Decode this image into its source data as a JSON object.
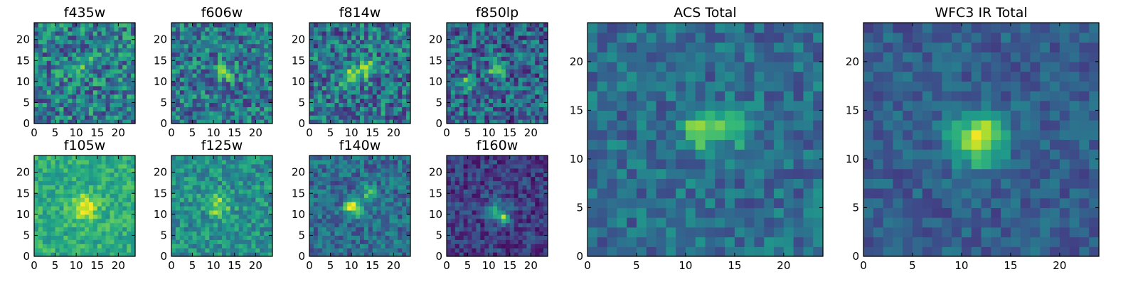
{
  "chart_data": [
    {
      "type": "heatmap",
      "title": "f435w",
      "grid": [
        24,
        24
      ],
      "xlim": [
        0,
        24
      ],
      "ylim": [
        0,
        24
      ],
      "xticks": [
        0,
        5,
        10,
        15,
        20
      ],
      "yticks": [
        0,
        5,
        10,
        15,
        20
      ],
      "colormap": "viridis",
      "seed": 11,
      "base": 0.42,
      "noise": 0.28,
      "peaks": [
        {
          "x": 12,
          "y": 14,
          "a": 0.15,
          "s": 2.0
        }
      ]
    },
    {
      "type": "heatmap",
      "title": "f606w",
      "grid": [
        24,
        24
      ],
      "xlim": [
        0,
        24
      ],
      "ylim": [
        0,
        24
      ],
      "xticks": [
        0,
        5,
        10,
        15,
        20
      ],
      "yticks": [
        0,
        5,
        10,
        15,
        20
      ],
      "colormap": "viridis",
      "seed": 22,
      "base": 0.4,
      "noise": 0.26,
      "peaks": [
        {
          "x": 12.5,
          "y": 12.5,
          "a": 0.45,
          "s": 1.3
        }
      ]
    },
    {
      "type": "heatmap",
      "title": "f814w",
      "grid": [
        24,
        24
      ],
      "xlim": [
        0,
        24
      ],
      "ylim": [
        0,
        24
      ],
      "xticks": [
        0,
        5,
        10,
        15,
        20
      ],
      "yticks": [
        0,
        5,
        10,
        15,
        20
      ],
      "colormap": "viridis",
      "seed": 33,
      "base": 0.38,
      "noise": 0.28,
      "peaks": [
        {
          "x": 9.5,
          "y": 11,
          "a": 0.45,
          "s": 1.4
        },
        {
          "x": 14,
          "y": 13,
          "a": 0.45,
          "s": 1.4
        }
      ]
    },
    {
      "type": "heatmap",
      "title": "f850lp",
      "grid": [
        24,
        24
      ],
      "xlim": [
        0,
        24
      ],
      "ylim": [
        0,
        24
      ],
      "xticks": [
        0,
        5,
        10,
        15,
        20
      ],
      "yticks": [
        0,
        5,
        10,
        15,
        20
      ],
      "colormap": "viridis",
      "seed": 44,
      "base": 0.32,
      "noise": 0.26,
      "peaks": [
        {
          "x": 12,
          "y": 13,
          "a": 0.55,
          "s": 1.3
        },
        {
          "x": 5,
          "y": 9.5,
          "a": 0.45,
          "s": 1.2
        }
      ]
    },
    {
      "type": "heatmap",
      "title": "f105w",
      "grid": [
        24,
        24
      ],
      "xlim": [
        0,
        24
      ],
      "ylim": [
        0,
        24
      ],
      "xticks": [
        0,
        5,
        10,
        15,
        20
      ],
      "yticks": [
        0,
        5,
        10,
        15,
        20
      ],
      "colormap": "viridis",
      "seed": 55,
      "base": 0.62,
      "noise": 0.14,
      "peaks": [
        {
          "x": 12,
          "y": 12,
          "a": 0.35,
          "s": 2.2
        }
      ]
    },
    {
      "type": "heatmap",
      "title": "f125w",
      "grid": [
        24,
        24
      ],
      "xlim": [
        0,
        24
      ],
      "ylim": [
        0,
        24
      ],
      "xticks": [
        0,
        5,
        10,
        15,
        20
      ],
      "yticks": [
        0,
        5,
        10,
        15,
        20
      ],
      "colormap": "viridis",
      "seed": 66,
      "base": 0.5,
      "noise": 0.18,
      "peaks": [
        {
          "x": 11,
          "y": 12,
          "a": 0.38,
          "s": 1.8
        }
      ]
    },
    {
      "type": "heatmap",
      "title": "f140w",
      "grid": [
        24,
        24
      ],
      "xlim": [
        0,
        24
      ],
      "ylim": [
        0,
        24
      ],
      "xticks": [
        0,
        5,
        10,
        15,
        20
      ],
      "yticks": [
        0,
        5,
        10,
        15,
        20
      ],
      "colormap": "viridis",
      "seed": 77,
      "base": 0.35,
      "noise": 0.18,
      "peaks": [
        {
          "x": 10,
          "y": 12,
          "a": 0.55,
          "s": 1.2
        },
        {
          "x": 14,
          "y": 15,
          "a": 0.35,
          "s": 1.2
        },
        {
          "x": 12,
          "y": 11,
          "a": 0.45,
          "s": 1.0
        }
      ]
    },
    {
      "type": "heatmap",
      "title": "f160w",
      "grid": [
        24,
        24
      ],
      "xlim": [
        0,
        24
      ],
      "ylim": [
        0,
        24
      ],
      "xticks": [
        0,
        5,
        10,
        15,
        20
      ],
      "yticks": [
        0,
        5,
        10,
        15,
        20
      ],
      "colormap": "viridis",
      "seed": 88,
      "base": 0.18,
      "noise": 0.15,
      "peaks": [
        {
          "x": 12,
          "y": 11,
          "a": 0.35,
          "s": 1.8
        },
        {
          "x": 13.5,
          "y": 9,
          "a": 0.5,
          "s": 0.8
        }
      ]
    },
    {
      "type": "heatmap",
      "title": "ACS Total",
      "grid": [
        24,
        24
      ],
      "xlim": [
        0,
        24
      ],
      "ylim": [
        0,
        24
      ],
      "xticks": [
        0,
        5,
        10,
        15,
        20
      ],
      "yticks": [
        0,
        5,
        10,
        15,
        20
      ],
      "colormap": "viridis",
      "seed": 99,
      "base": 0.36,
      "noise": 0.16,
      "peaks": [
        {
          "x": 11.5,
          "y": 13,
          "a": 0.5,
          "s": 1.2
        },
        {
          "x": 14.5,
          "y": 13,
          "a": 0.2,
          "s": 2.0
        }
      ]
    },
    {
      "type": "heatmap",
      "title": "WFC3 IR Total",
      "grid": [
        24,
        24
      ],
      "xlim": [
        0,
        24
      ],
      "ylim": [
        0,
        24
      ],
      "xticks": [
        0,
        5,
        10,
        15,
        20
      ],
      "yticks": [
        0,
        5,
        10,
        15,
        20
      ],
      "colormap": "viridis",
      "seed": 111,
      "base": 0.3,
      "noise": 0.12,
      "peaks": [
        {
          "x": 11.5,
          "y": 12,
          "a": 0.55,
          "s": 2.0
        },
        {
          "x": 12,
          "y": 13,
          "a": 0.25,
          "s": 0.8
        }
      ]
    }
  ],
  "colors": {
    "viridis": [
      "#440154",
      "#482878",
      "#3e4a89",
      "#31688e",
      "#26828e",
      "#1f9e89",
      "#35b779",
      "#6ece58",
      "#b5de2b",
      "#fde725"
    ]
  }
}
